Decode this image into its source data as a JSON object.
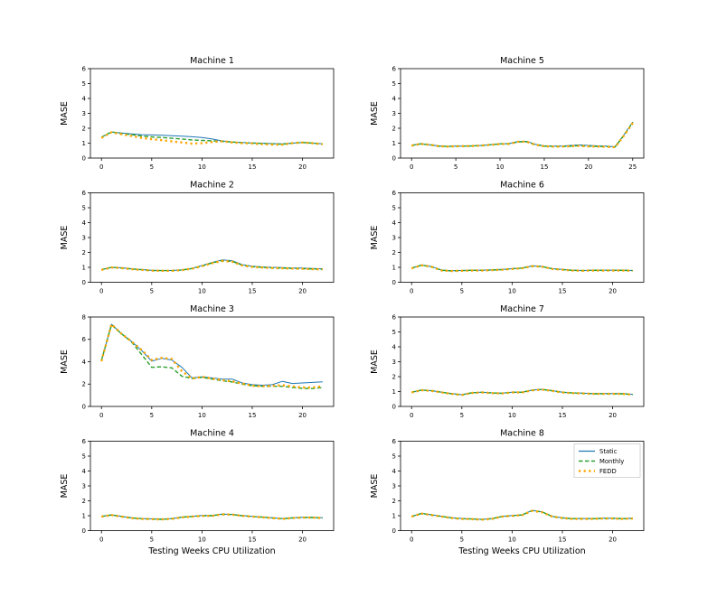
{
  "figure": {
    "background": "#ffffff",
    "shared_xlabel": "Testing Weeks CPU Utilization",
    "shared_ylabel": "MASE",
    "legend": {
      "position": "top-right-of-machine-8",
      "entries": [
        "Static",
        "Monthly",
        "FEDD"
      ]
    },
    "colors": {
      "static": "#1f77b4",
      "monthly": "#2ca02c",
      "fedd": "#ffa500"
    }
  },
  "chart_data": [
    {
      "type": "line",
      "title": "Machine 1",
      "row": 0,
      "col": 0,
      "ylabel": "MASE",
      "xlabel": "",
      "xlim": [
        0,
        22
      ],
      "ylim": [
        0,
        6
      ],
      "xticks": [
        0,
        5,
        10,
        15,
        20
      ],
      "yticks": [
        0,
        1,
        2,
        3,
        4,
        5,
        6
      ],
      "x": [
        0,
        1,
        2,
        3,
        4,
        5,
        6,
        7,
        8,
        9,
        10,
        11,
        12,
        13,
        14,
        15,
        16,
        17,
        18,
        19,
        20,
        21,
        22
      ],
      "legend": false,
      "series": [
        {
          "name": "Static",
          "color": "#1f77b4",
          "style": "solid",
          "values": [
            1.4,
            1.75,
            1.68,
            1.62,
            1.57,
            1.55,
            1.53,
            1.5,
            1.47,
            1.43,
            1.38,
            1.28,
            1.15,
            1.08,
            1.05,
            1.02,
            1.0,
            0.97,
            0.95,
            1.0,
            1.05,
            1.0,
            0.95
          ]
        },
        {
          "name": "Monthly",
          "color": "#2ca02c",
          "style": "dashed",
          "values": [
            1.4,
            1.75,
            1.65,
            1.57,
            1.48,
            1.42,
            1.38,
            1.33,
            1.28,
            1.22,
            1.18,
            1.16,
            1.12,
            1.07,
            1.04,
            1.0,
            0.98,
            0.95,
            0.93,
            1.0,
            1.05,
            1.0,
            0.95
          ]
        },
        {
          "name": "FEDD",
          "color": "#ffa500",
          "style": "dotted",
          "values": [
            1.35,
            1.73,
            1.6,
            1.48,
            1.35,
            1.27,
            1.2,
            1.12,
            1.05,
            0.97,
            1.0,
            1.08,
            1.13,
            1.05,
            1.0,
            0.98,
            0.93,
            0.9,
            0.9,
            1.0,
            1.04,
            1.0,
            0.93
          ]
        }
      ]
    },
    {
      "type": "line",
      "title": "Machine 5",
      "row": 0,
      "col": 1,
      "ylabel": "MASE",
      "xlabel": "",
      "xlim": [
        0,
        25
      ],
      "ylim": [
        0,
        6
      ],
      "xticks": [
        0,
        5,
        10,
        15,
        20,
        25
      ],
      "yticks": [
        0,
        1,
        2,
        3,
        4,
        5,
        6
      ],
      "x": [
        0,
        1,
        2,
        3,
        4,
        5,
        6,
        7,
        8,
        9,
        10,
        11,
        12,
        13,
        14,
        15,
        16,
        17,
        18,
        19,
        20,
        21,
        22,
        23,
        24,
        25
      ],
      "legend": false,
      "series": [
        {
          "name": "Static",
          "color": "#1f77b4",
          "style": "solid",
          "values": [
            0.85,
            0.95,
            0.9,
            0.82,
            0.78,
            0.8,
            0.8,
            0.82,
            0.85,
            0.9,
            0.95,
            0.97,
            1.1,
            1.12,
            0.92,
            0.82,
            0.8,
            0.8,
            0.85,
            0.88,
            0.85,
            0.82,
            0.8,
            0.76,
            1.55,
            2.42
          ]
        },
        {
          "name": "Monthly",
          "color": "#2ca02c",
          "style": "dashed",
          "values": [
            0.85,
            0.95,
            0.9,
            0.8,
            0.78,
            0.8,
            0.8,
            0.82,
            0.85,
            0.9,
            0.95,
            0.95,
            1.08,
            1.1,
            0.9,
            0.8,
            0.78,
            0.78,
            0.8,
            0.83,
            0.8,
            0.78,
            0.77,
            0.74,
            1.52,
            2.4
          ]
        },
        {
          "name": "FEDD",
          "color": "#ffa500",
          "style": "dotted",
          "values": [
            0.83,
            0.95,
            0.9,
            0.8,
            0.77,
            0.79,
            0.8,
            0.81,
            0.84,
            0.89,
            0.94,
            0.95,
            1.09,
            1.1,
            0.89,
            0.79,
            0.77,
            0.77,
            0.8,
            0.82,
            0.79,
            0.77,
            0.76,
            0.73,
            1.5,
            2.35
          ]
        }
      ]
    },
    {
      "type": "line",
      "title": "Machine 2",
      "row": 1,
      "col": 0,
      "ylabel": "MASE",
      "xlabel": "",
      "xlim": [
        0,
        22
      ],
      "ylim": [
        0,
        6
      ],
      "xticks": [
        0,
        5,
        10,
        15,
        20
      ],
      "yticks": [
        0,
        1,
        2,
        3,
        4,
        5,
        6
      ],
      "x": [
        0,
        1,
        2,
        3,
        4,
        5,
        6,
        7,
        8,
        9,
        10,
        11,
        12,
        13,
        14,
        15,
        16,
        17,
        18,
        19,
        20,
        21,
        22
      ],
      "legend": false,
      "series": [
        {
          "name": "Static",
          "color": "#1f77b4",
          "style": "solid",
          "values": [
            0.85,
            1.0,
            0.97,
            0.9,
            0.85,
            0.8,
            0.79,
            0.79,
            0.83,
            0.93,
            1.12,
            1.33,
            1.5,
            1.45,
            1.18,
            1.08,
            1.03,
            1.0,
            0.98,
            0.96,
            0.95,
            0.93,
            0.9
          ]
        },
        {
          "name": "Monthly",
          "color": "#2ca02c",
          "style": "dashed",
          "values": [
            0.85,
            1.0,
            0.96,
            0.89,
            0.84,
            0.79,
            0.78,
            0.78,
            0.82,
            0.92,
            1.1,
            1.3,
            1.45,
            1.4,
            1.15,
            1.05,
            1.0,
            0.97,
            0.95,
            0.93,
            0.91,
            0.89,
            0.87
          ]
        },
        {
          "name": "FEDD",
          "color": "#ffa500",
          "style": "dotted",
          "values": [
            0.83,
            0.99,
            0.95,
            0.88,
            0.83,
            0.78,
            0.77,
            0.77,
            0.81,
            0.91,
            1.08,
            1.28,
            1.43,
            1.38,
            1.13,
            1.03,
            0.99,
            0.96,
            0.94,
            0.92,
            0.9,
            0.88,
            0.86
          ]
        }
      ]
    },
    {
      "type": "line",
      "title": "Machine 6",
      "row": 1,
      "col": 1,
      "ylabel": "MASE",
      "xlabel": "",
      "xlim": [
        0,
        22
      ],
      "ylim": [
        0,
        6
      ],
      "xticks": [
        0,
        5,
        10,
        15,
        20
      ],
      "yticks": [
        0,
        1,
        2,
        3,
        4,
        5,
        6
      ],
      "x": [
        0,
        1,
        2,
        3,
        4,
        5,
        6,
        7,
        8,
        9,
        10,
        11,
        12,
        13,
        14,
        15,
        16,
        17,
        18,
        19,
        20,
        21,
        22
      ],
      "legend": false,
      "series": [
        {
          "name": "Static",
          "color": "#1f77b4",
          "style": "solid",
          "values": [
            0.95,
            1.15,
            1.05,
            0.81,
            0.77,
            0.79,
            0.81,
            0.81,
            0.83,
            0.86,
            0.91,
            0.96,
            1.1,
            1.06,
            0.91,
            0.86,
            0.81,
            0.79,
            0.81,
            0.81,
            0.81,
            0.81,
            0.79
          ]
        },
        {
          "name": "Monthly",
          "color": "#2ca02c",
          "style": "dashed",
          "values": [
            0.95,
            1.15,
            1.04,
            0.8,
            0.76,
            0.78,
            0.8,
            0.8,
            0.82,
            0.85,
            0.9,
            0.95,
            1.09,
            1.05,
            0.9,
            0.85,
            0.8,
            0.78,
            0.8,
            0.8,
            0.8,
            0.8,
            0.78
          ]
        },
        {
          "name": "FEDD",
          "color": "#ffa500",
          "style": "dotted",
          "values": [
            0.93,
            1.14,
            1.03,
            0.79,
            0.75,
            0.77,
            0.79,
            0.79,
            0.81,
            0.84,
            0.89,
            0.94,
            1.08,
            1.04,
            0.89,
            0.84,
            0.79,
            0.77,
            0.79,
            0.79,
            0.79,
            0.79,
            0.77
          ]
        }
      ]
    },
    {
      "type": "line",
      "title": "Machine 3",
      "row": 2,
      "col": 0,
      "ylabel": "MASE",
      "xlabel": "",
      "xlim": [
        0,
        22
      ],
      "ylim": [
        0,
        8
      ],
      "xticks": [
        0,
        5,
        10,
        15,
        20
      ],
      "yticks": [
        0,
        2,
        4,
        6,
        8
      ],
      "x": [
        0,
        1,
        2,
        3,
        4,
        5,
        6,
        7,
        8,
        9,
        10,
        11,
        12,
        13,
        14,
        15,
        16,
        17,
        18,
        19,
        20,
        21,
        22
      ],
      "legend": false,
      "series": [
        {
          "name": "Static",
          "color": "#1f77b4",
          "style": "solid",
          "values": [
            4.1,
            7.35,
            6.5,
            5.8,
            5.0,
            4.05,
            4.3,
            4.15,
            3.5,
            2.55,
            2.65,
            2.55,
            2.45,
            2.45,
            2.1,
            1.95,
            1.9,
            1.95,
            2.25,
            2.05,
            2.1,
            2.15,
            2.2
          ]
        },
        {
          "name": "Monthly",
          "color": "#2ca02c",
          "style": "dashed",
          "values": [
            4.1,
            7.3,
            6.5,
            5.75,
            4.65,
            3.5,
            3.55,
            3.45,
            2.7,
            2.5,
            2.6,
            2.45,
            2.3,
            2.2,
            2.0,
            1.85,
            1.8,
            1.8,
            1.8,
            1.7,
            1.62,
            1.6,
            1.7
          ]
        },
        {
          "name": "FEDD",
          "color": "#ffa500",
          "style": "dotted",
          "values": [
            4.05,
            7.35,
            6.5,
            5.8,
            5.05,
            4.15,
            4.35,
            4.25,
            3.15,
            2.5,
            2.65,
            2.5,
            2.35,
            2.25,
            2.05,
            1.85,
            1.8,
            1.85,
            1.9,
            1.8,
            1.7,
            1.7,
            1.8
          ]
        }
      ]
    },
    {
      "type": "line",
      "title": "Machine 7",
      "row": 2,
      "col": 1,
      "ylabel": "MASE",
      "xlabel": "",
      "xlim": [
        0,
        22
      ],
      "ylim": [
        0,
        6
      ],
      "xticks": [
        0,
        5,
        10,
        15,
        20
      ],
      "yticks": [
        0,
        1,
        2,
        3,
        4,
        5,
        6
      ],
      "x": [
        0,
        1,
        2,
        3,
        4,
        5,
        6,
        7,
        8,
        9,
        10,
        11,
        12,
        13,
        14,
        15,
        16,
        17,
        18,
        19,
        20,
        21,
        22
      ],
      "legend": false,
      "series": [
        {
          "name": "Static",
          "color": "#1f77b4",
          "style": "solid",
          "values": [
            0.96,
            1.1,
            1.06,
            0.96,
            0.86,
            0.79,
            0.92,
            0.96,
            0.91,
            0.89,
            0.96,
            0.96,
            1.1,
            1.15,
            1.06,
            0.96,
            0.91,
            0.89,
            0.86,
            0.86,
            0.86,
            0.86,
            0.81
          ]
        },
        {
          "name": "Monthly",
          "color": "#2ca02c",
          "style": "dashed",
          "values": [
            0.95,
            1.1,
            1.05,
            0.95,
            0.85,
            0.78,
            0.91,
            0.95,
            0.9,
            0.88,
            0.95,
            0.95,
            1.09,
            1.14,
            1.05,
            0.95,
            0.9,
            0.88,
            0.85,
            0.85,
            0.85,
            0.85,
            0.8
          ]
        },
        {
          "name": "FEDD",
          "color": "#ffa500",
          "style": "dotted",
          "values": [
            0.94,
            1.09,
            1.04,
            0.94,
            0.84,
            0.77,
            0.9,
            0.94,
            0.89,
            0.87,
            0.94,
            0.94,
            1.08,
            1.13,
            1.04,
            0.94,
            0.89,
            0.87,
            0.84,
            0.84,
            0.84,
            0.84,
            0.79
          ]
        }
      ]
    },
    {
      "type": "line",
      "title": "Machine 4",
      "row": 3,
      "col": 0,
      "ylabel": "MASE",
      "xlabel": "Testing Weeks CPU Utilization",
      "xlim": [
        0,
        22
      ],
      "ylim": [
        0,
        6
      ],
      "xticks": [
        0,
        5,
        10,
        15,
        20
      ],
      "yticks": [
        0,
        1,
        2,
        3,
        4,
        5,
        6
      ],
      "x": [
        0,
        1,
        2,
        3,
        4,
        5,
        6,
        7,
        8,
        9,
        10,
        11,
        12,
        13,
        14,
        15,
        16,
        17,
        18,
        19,
        20,
        21,
        22
      ],
      "legend": false,
      "series": [
        {
          "name": "Static",
          "color": "#1f77b4",
          "style": "solid",
          "values": [
            0.96,
            1.06,
            0.96,
            0.86,
            0.81,
            0.79,
            0.77,
            0.81,
            0.91,
            0.96,
            1.01,
            1.01,
            1.11,
            1.09,
            1.01,
            0.96,
            0.91,
            0.86,
            0.81,
            0.86,
            0.89,
            0.89,
            0.86
          ]
        },
        {
          "name": "Monthly",
          "color": "#2ca02c",
          "style": "dashed",
          "values": [
            0.95,
            1.05,
            0.95,
            0.85,
            0.8,
            0.78,
            0.76,
            0.8,
            0.9,
            0.95,
            1.0,
            1.0,
            1.1,
            1.08,
            1.0,
            0.95,
            0.9,
            0.85,
            0.8,
            0.85,
            0.88,
            0.88,
            0.85
          ]
        },
        {
          "name": "FEDD",
          "color": "#ffa500",
          "style": "dotted",
          "values": [
            0.94,
            1.04,
            0.94,
            0.84,
            0.79,
            0.77,
            0.75,
            0.79,
            0.89,
            0.94,
            0.99,
            0.99,
            1.09,
            1.07,
            0.99,
            0.94,
            0.89,
            0.84,
            0.79,
            0.84,
            0.87,
            0.87,
            0.84
          ]
        }
      ]
    },
    {
      "type": "line",
      "title": "Machine 8",
      "row": 3,
      "col": 1,
      "ylabel": "MASE",
      "xlabel": "Testing Weeks CPU Utilization",
      "xlim": [
        0,
        22
      ],
      "ylim": [
        0,
        6
      ],
      "xticks": [
        0,
        5,
        10,
        15,
        20
      ],
      "yticks": [
        0,
        1,
        2,
        3,
        4,
        5,
        6
      ],
      "x": [
        0,
        1,
        2,
        3,
        4,
        5,
        6,
        7,
        8,
        9,
        10,
        11,
        12,
        13,
        14,
        15,
        16,
        17,
        18,
        19,
        20,
        21,
        22
      ],
      "legend": true,
      "series": [
        {
          "name": "Static",
          "color": "#1f77b4",
          "style": "solid",
          "values": [
            0.96,
            1.16,
            1.06,
            0.96,
            0.86,
            0.81,
            0.79,
            0.76,
            0.81,
            0.96,
            1.01,
            1.06,
            1.36,
            1.26,
            0.96,
            0.86,
            0.81,
            0.81,
            0.81,
            0.83,
            0.83,
            0.81,
            0.83
          ]
        },
        {
          "name": "Monthly",
          "color": "#2ca02c",
          "style": "dashed",
          "values": [
            0.95,
            1.15,
            1.05,
            0.95,
            0.85,
            0.8,
            0.78,
            0.75,
            0.8,
            0.95,
            1.0,
            1.05,
            1.35,
            1.25,
            0.95,
            0.85,
            0.8,
            0.8,
            0.8,
            0.82,
            0.82,
            0.8,
            0.82
          ]
        },
        {
          "name": "FEDD",
          "color": "#ffa500",
          "style": "dotted",
          "values": [
            0.94,
            1.14,
            1.04,
            0.94,
            0.84,
            0.79,
            0.77,
            0.74,
            0.79,
            0.94,
            0.99,
            1.04,
            1.33,
            1.23,
            0.94,
            0.84,
            0.79,
            0.79,
            0.79,
            0.81,
            0.81,
            0.79,
            0.81
          ]
        }
      ]
    }
  ]
}
